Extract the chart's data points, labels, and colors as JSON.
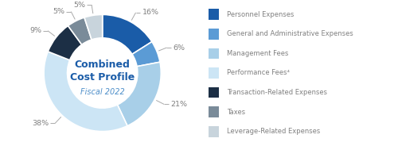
{
  "title_line1": "Combined",
  "title_line2": "Cost Profile",
  "subtitle": "Fiscal 2022",
  "slices": [
    16,
    6,
    21,
    38,
    9,
    5,
    5
  ],
  "colors": [
    "#1a5ca8",
    "#5b9bd5",
    "#a8cfe8",
    "#cce5f5",
    "#1c2f45",
    "#7a8b99",
    "#c8d4dc"
  ],
  "labels": [
    "16%",
    "6%",
    "21%",
    "38%",
    "9%",
    "5%",
    "5%"
  ],
  "legend_labels": [
    "Personnel Expenses",
    "General and Administrative Expenses",
    "Management Fees",
    "Performance Fees⁴",
    "Transaction-Related Expenses",
    "Taxes",
    "Leverage-Related Expenses"
  ],
  "background_color": "#ffffff",
  "text_color": "#808080",
  "title_color": "#1a5ca8",
  "subtitle_color": "#4d8ec9",
  "wedge_edge_color": "#ffffff",
  "start_angle": 90,
  "donut_width": 0.4
}
